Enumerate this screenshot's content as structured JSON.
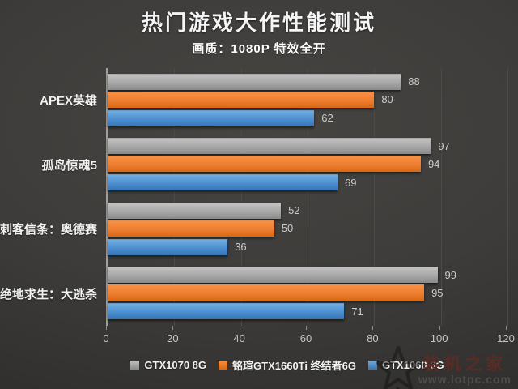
{
  "header": {
    "title": "热门游戏大作性能测试",
    "subtitle": "画质：1080P 特效全开"
  },
  "chart_data": {
    "type": "bar",
    "orientation": "horizontal",
    "title": "热门游戏大作性能测试",
    "subtitle": "画质：1080P 特效全开",
    "categories": [
      "APEX英雄",
      "孤岛惊魂5",
      "刺客信条：奥德赛",
      "绝地求生：大逃杀"
    ],
    "series": [
      {
        "name": "GTX1070 8G",
        "color": "#a6a6a6",
        "color_top": "#c2c2c2",
        "color_bottom": "#8a8a8a",
        "values": [
          88,
          97,
          52,
          99
        ]
      },
      {
        "name": "铭瑄GTX1660Ti 终结者6G",
        "color": "#ed7d31",
        "color_top": "#f79044",
        "color_bottom": "#d96812",
        "values": [
          80,
          94,
          50,
          95
        ]
      },
      {
        "name": "GTX1060 6G",
        "color": "#4a8ed0",
        "color_top": "#6fadde",
        "color_bottom": "#3875b2",
        "values": [
          62,
          69,
          36,
          71
        ]
      }
    ],
    "xlim": [
      0,
      120
    ],
    "xticks": [
      0,
      20,
      40,
      60,
      80,
      100,
      120
    ],
    "grid": true,
    "legend_position": "bottom",
    "value_labels_shown": true
  },
  "watermark": {
    "name": "装机之家",
    "url": "www.lotpc.com"
  },
  "palette": {
    "background": "#3d3c3a",
    "title_text": "#f5f5f5",
    "category_text": "#f1f1f1",
    "value_label_text": "#cccccc",
    "tick_label_text": "#c6c6c6",
    "axis_line": "#a0a09e",
    "gridline": "#4b4a47",
    "watermark_name_color": "#5e2b26",
    "watermark_url_color": "#4e4e4e"
  }
}
